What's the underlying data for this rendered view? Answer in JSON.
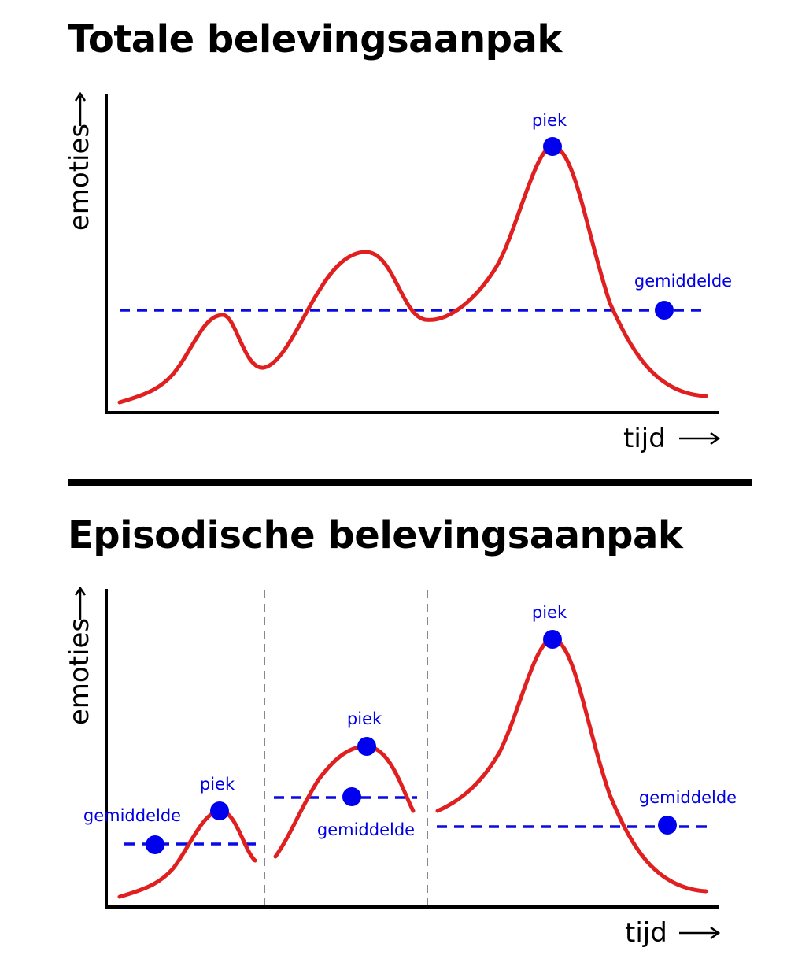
{
  "top": {
    "title": "Totale belevingsaanpak",
    "y_axis_label": "emoties",
    "x_axis_label": "tijd",
    "peak_label": "piek",
    "average_label": "gemiddelde"
  },
  "bottom": {
    "title": "Episodische belevingsaanpak",
    "y_axis_label": "emoties",
    "x_axis_label": "tijd",
    "episodes": [
      {
        "peak_label": "piek",
        "average_label": "gemiddelde"
      },
      {
        "peak_label": "piek",
        "average_label": "gemiddelde"
      },
      {
        "peak_label": "piek",
        "average_label": "gemiddelde"
      }
    ]
  },
  "colors": {
    "curve": "#e02020",
    "average_line": "#0a0ae6",
    "marker": "#0000ee",
    "axis": "#000000",
    "separator": "#888888"
  }
}
